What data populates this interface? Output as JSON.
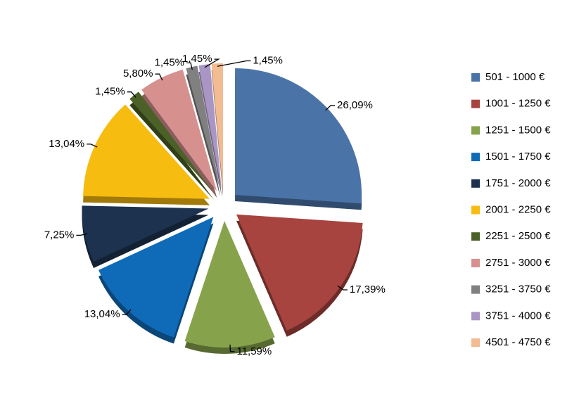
{
  "chart_data": {
    "type": "pie",
    "categories": [
      "501 - 1000 €",
      "1001 - 1250 €",
      "1251 - 1500 €",
      "1501 - 1750 €",
      "1751 - 2000 €",
      "2001 - 2250 €",
      "2251 - 2500 €",
      "2751 - 3000 €",
      "3251 - 3750 €",
      "3751 - 4000 €",
      "4501 - 4750 €"
    ],
    "values": [
      26.09,
      17.39,
      11.59,
      13.04,
      7.25,
      13.04,
      1.45,
      5.8,
      1.45,
      1.45,
      1.45
    ],
    "value_labels": [
      "26,09%",
      "17,39%",
      "11,59%",
      "13,04%",
      "7,25%",
      "13,04%",
      "1,45%",
      "5,80%",
      "1,45%",
      "1,45%",
      "1,45%"
    ],
    "colors": [
      "#4a74a8",
      "#a8443f",
      "#86a34c",
      "#0f6bb8",
      "#1c324f",
      "#f7bc10",
      "#4b6127",
      "#d6918f",
      "#808080",
      "#a996c4",
      "#f2bb92"
    ],
    "legend": "right"
  }
}
